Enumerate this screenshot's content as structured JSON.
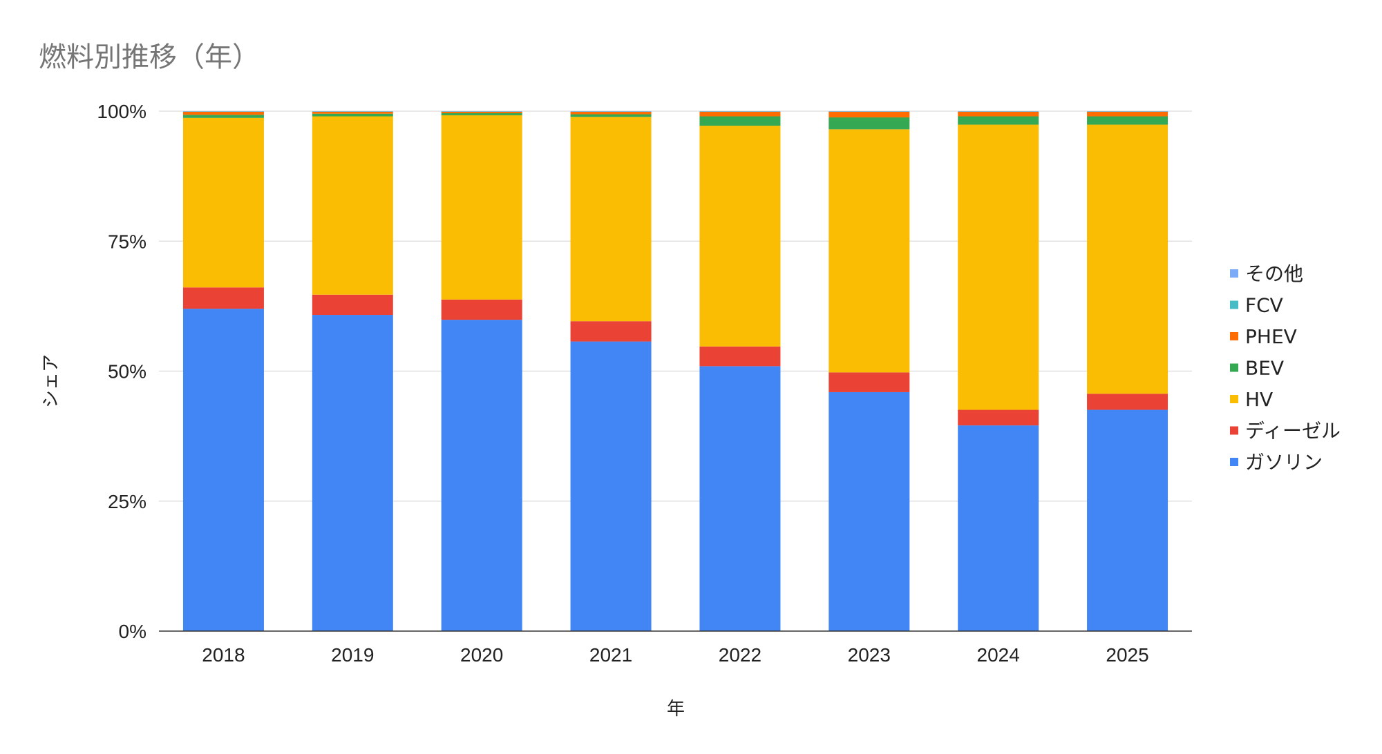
{
  "chart_data": {
    "type": "bar",
    "stacked": true,
    "percent_stacked": true,
    "title": "燃料別推移（年）",
    "xlabel": "年",
    "ylabel": "シェア",
    "ylim": [
      0,
      100
    ],
    "yticks": [
      "0%",
      "25%",
      "50%",
      "75%",
      "100%"
    ],
    "categories": [
      "2018",
      "2019",
      "2020",
      "2021",
      "2022",
      "2023",
      "2024",
      "2025"
    ],
    "grid": true,
    "legend_position": "right",
    "series": [
      {
        "name": "ガソリン",
        "color": "#4285F4",
        "values": [
          62.0,
          61.0,
          60.0,
          55.7,
          51.0,
          46.0,
          39.6,
          42.6
        ]
      },
      {
        "name": "ディーゼル",
        "color": "#EA4335",
        "values": [
          4.1,
          3.9,
          3.9,
          3.9,
          3.8,
          3.8,
          3.0,
          3.1
        ]
      },
      {
        "name": "HV",
        "color": "#FBBC04",
        "values": [
          32.6,
          34.4,
          35.5,
          39.3,
          42.5,
          46.8,
          54.9,
          51.8
        ]
      },
      {
        "name": "BEV",
        "color": "#34A853",
        "values": [
          0.6,
          0.5,
          0.4,
          0.5,
          1.8,
          2.3,
          1.6,
          1.6
        ]
      },
      {
        "name": "PHEV",
        "color": "#FF6D01",
        "values": [
          0.6,
          0.4,
          0.3,
          0.5,
          0.9,
          1.1,
          0.9,
          0.9
        ]
      },
      {
        "name": "FCV",
        "color": "#46BDC6",
        "values": [
          0.05,
          0.05,
          0.05,
          0.05,
          0.05,
          0.05,
          0.05,
          0.05
        ]
      },
      {
        "name": "その他",
        "color": "#7BAAF7",
        "values": [
          0.05,
          0.05,
          0.05,
          0.05,
          0.05,
          0.05,
          0.05,
          0.05
        ]
      }
    ]
  }
}
